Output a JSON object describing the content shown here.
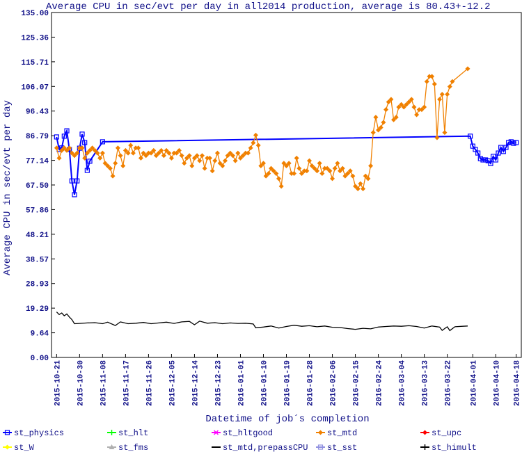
{
  "chart_data": {
    "type": "line",
    "title": "Average CPU in sec/evt per day in all2014 production, average is 80.43+-12.2",
    "xlabel": "Datetime of job´s completion",
    "ylabel": "Average CPU in sec/evt per day",
    "xlim": [
      "2015-10-19",
      "2016-04-20"
    ],
    "xticks": [
      "2015-10-21",
      "2015-10-30",
      "2015-11-08",
      "2015-11-17",
      "2015-11-26",
      "2015-12-05",
      "2015-12-14",
      "2015-12-23",
      "2016-01-01",
      "2016-01-10",
      "2016-01-19",
      "2016-01-28",
      "2016-02-06",
      "2016-02-15",
      "2016-02-24",
      "2016-03-04",
      "2016-03-13",
      "2016-03-22",
      "2016-04-01",
      "2016-04-10",
      "2016-04-18"
    ],
    "ylim": [
      0,
      135
    ],
    "yticks": [
      {
        "value": 0,
        "label": "0.00"
      },
      9.64,
      19.29,
      28.93,
      38.57,
      48.21,
      57.86,
      {
        "value": 67.5,
        "label": "67.50"
      },
      77.14,
      86.79,
      96.43,
      106.07,
      115.71,
      125.36,
      {
        "value": 135,
        "label": "135.00"
      }
    ],
    "grid": false,
    "series": [
      {
        "name": "st_physics",
        "color": "#0000ff",
        "marker": "square",
        "x": [
          "2015-10-21",
          "2015-10-22",
          "2015-10-23",
          "2015-10-24",
          "2015-10-25",
          "2015-10-26",
          "2015-10-27",
          "2015-10-28",
          "2015-10-29",
          "2015-10-30",
          "2015-10-31",
          "2015-11-01",
          "2015-11-02",
          "2015-11-03",
          "2015-11-08",
          "2016-03-31",
          "2016-04-01",
          "2016-04-02",
          "2016-04-03",
          "2016-04-04",
          "2016-04-05",
          "2016-04-06",
          "2016-04-07",
          "2016-04-08",
          "2016-04-09",
          "2016-04-10",
          "2016-04-11",
          "2016-04-12",
          "2016-04-13",
          "2016-04-14",
          "2016-04-15",
          "2016-04-16",
          "2016-04-17",
          "2016-04-18"
        ],
        "values": [
          86.3,
          81.4,
          82.0,
          86.6,
          88.7,
          81.4,
          69.1,
          63.7,
          69.1,
          81.9,
          87.4,
          84.1,
          73.2,
          76.8,
          84.4,
          86.6,
          82.7,
          81.4,
          80.0,
          77.8,
          77.3,
          77.3,
          77.0,
          75.9,
          78.7,
          77.3,
          80.0,
          82.2,
          80.6,
          82.2,
          84.1,
          84.4,
          83.8,
          84.1
        ]
      },
      {
        "name": "st_hlt",
        "color": "#00ff00",
        "marker": "plus",
        "x": [],
        "values": []
      },
      {
        "name": "st_hltgood",
        "color": "#ff00ff",
        "marker": "cross",
        "x": [],
        "values": []
      },
      {
        "name": "st_mtd",
        "color": "#f08000",
        "marker": "diamond",
        "x": [
          "2015-10-21",
          "2015-10-22",
          "2015-10-23",
          "2015-10-24",
          "2015-10-25",
          "2015-10-26",
          "2015-10-27",
          "2015-10-28",
          "2015-10-29",
          "2015-10-30",
          "2015-10-31",
          "2015-11-01",
          "2015-11-02",
          "2015-11-03",
          "2015-11-04",
          "2015-11-05",
          "2015-11-06",
          "2015-11-07",
          "2015-11-08",
          "2015-11-09",
          "2015-11-10",
          "2015-11-11",
          "2015-11-12",
          "2015-11-13",
          "2015-11-14",
          "2015-11-15",
          "2015-11-16",
          "2015-11-17",
          "2015-11-18",
          "2015-11-19",
          "2015-11-20",
          "2015-11-21",
          "2015-11-22",
          "2015-11-23",
          "2015-11-24",
          "2015-11-25",
          "2015-11-26",
          "2015-11-27",
          "2015-11-28",
          "2015-11-29",
          "2015-11-30",
          "2015-12-01",
          "2015-12-02",
          "2015-12-03",
          "2015-12-04",
          "2015-12-05",
          "2015-12-06",
          "2015-12-07",
          "2015-12-08",
          "2015-12-09",
          "2015-12-10",
          "2015-12-11",
          "2015-12-12",
          "2015-12-13",
          "2015-12-14",
          "2015-12-15",
          "2015-12-16",
          "2015-12-17",
          "2015-12-18",
          "2015-12-19",
          "2015-12-20",
          "2015-12-21",
          "2015-12-22",
          "2015-12-23",
          "2015-12-24",
          "2015-12-25",
          "2015-12-26",
          "2015-12-27",
          "2015-12-28",
          "2015-12-29",
          "2015-12-30",
          "2015-12-31",
          "2016-01-01",
          "2016-01-02",
          "2016-01-03",
          "2016-01-04",
          "2016-01-05",
          "2016-01-06",
          "2016-01-07",
          "2016-01-08",
          "2016-01-09",
          "2016-01-10",
          "2016-01-11",
          "2016-01-12",
          "2016-01-13",
          "2016-01-14",
          "2016-01-15",
          "2016-01-16",
          "2016-01-17",
          "2016-01-18",
          "2016-01-19",
          "2016-01-20",
          "2016-01-21",
          "2016-01-22",
          "2016-01-23",
          "2016-01-24",
          "2016-01-25",
          "2016-01-26",
          "2016-01-27",
          "2016-01-28",
          "2016-01-29",
          "2016-01-30",
          "2016-01-31",
          "2016-02-01",
          "2016-02-02",
          "2016-02-03",
          "2016-02-04",
          "2016-02-05",
          "2016-02-06",
          "2016-02-07",
          "2016-02-08",
          "2016-02-09",
          "2016-02-10",
          "2016-02-11",
          "2016-02-12",
          "2016-02-13",
          "2016-02-14",
          "2016-02-15",
          "2016-02-16",
          "2016-02-17",
          "2016-02-18",
          "2016-02-19",
          "2016-02-20",
          "2016-02-21",
          "2016-02-22",
          "2016-02-23",
          "2016-02-24",
          "2016-02-25",
          "2016-02-26",
          "2016-02-27",
          "2016-02-28",
          "2016-02-29",
          "2016-03-01",
          "2016-03-02",
          "2016-03-03",
          "2016-03-04",
          "2016-03-05",
          "2016-03-06",
          "2016-03-07",
          "2016-03-08",
          "2016-03-09",
          "2016-03-10",
          "2016-03-11",
          "2016-03-12",
          "2016-03-13",
          "2016-03-14",
          "2016-03-15",
          "2016-03-16",
          "2016-03-17",
          "2016-03-18",
          "2016-03-19",
          "2016-03-20",
          "2016-03-21",
          "2016-03-22",
          "2016-03-23",
          "2016-03-24",
          "2016-03-30"
        ],
        "values": [
          82,
          78,
          81,
          82,
          81,
          82,
          80,
          79,
          80,
          82,
          82,
          78,
          80,
          81,
          82,
          81,
          80,
          78,
          80,
          76,
          75,
          74,
          71,
          76,
          82,
          79,
          75,
          81,
          80,
          83,
          80,
          82,
          82,
          78,
          80,
          79,
          80,
          80,
          81,
          79,
          80,
          81,
          79,
          81,
          80,
          78,
          80,
          80,
          81,
          79,
          76,
          78,
          79,
          75,
          78,
          79,
          77,
          79,
          74,
          78,
          78,
          73,
          77,
          80,
          76,
          75,
          77,
          79,
          80,
          79,
          77,
          80,
          78,
          79,
          80,
          80,
          82,
          84,
          87,
          83,
          75,
          76,
          71,
          72,
          74,
          73,
          72,
          70,
          67,
          76,
          75,
          76,
          72,
          72,
          78,
          74,
          72,
          73,
          73,
          77,
          75,
          74,
          73,
          76,
          72,
          74,
          74,
          73,
          70,
          74,
          76,
          73,
          74,
          71,
          72,
          73,
          71,
          67,
          66,
          68,
          66,
          71,
          70,
          75,
          88,
          94,
          89,
          90,
          92,
          97,
          100,
          101,
          93,
          94,
          98,
          99,
          98,
          99,
          100,
          101,
          98,
          95,
          97,
          97,
          98,
          108,
          110,
          110,
          107,
          86,
          101,
          103,
          88,
          103,
          106,
          108,
          113
        ]
      },
      {
        "name": "st_upc",
        "color": "#ff0000",
        "marker": "diamond",
        "x": [],
        "values": []
      },
      {
        "name": "st_W",
        "color": "#ffff00",
        "marker": "diamond",
        "x": [],
        "values": []
      },
      {
        "name": "st_fms",
        "color": "#b0b0b0",
        "marker": "triangle",
        "x": [],
        "values": []
      },
      {
        "name": "st_mtd,prepassCPU",
        "color": "#000000",
        "marker": "none",
        "x": [
          "2015-10-21",
          "2015-10-22",
          "2015-10-23",
          "2015-10-24",
          "2015-10-25",
          "2015-10-26",
          "2015-10-27",
          "2015-10-28",
          "2015-10-30",
          "2015-11-02",
          "2015-11-05",
          "2015-11-08",
          "2015-11-10",
          "2015-11-13",
          "2015-11-15",
          "2015-11-18",
          "2015-11-21",
          "2015-11-24",
          "2015-11-27",
          "2015-11-30",
          "2015-12-03",
          "2015-12-06",
          "2015-12-09",
          "2015-12-12",
          "2015-12-14",
          "2015-12-16",
          "2015-12-19",
          "2015-12-22",
          "2015-12-25",
          "2015-12-28",
          "2015-12-31",
          "2016-01-03",
          "2016-01-06",
          "2016-01-07",
          "2016-01-10",
          "2016-01-13",
          "2016-01-16",
          "2016-01-19",
          "2016-01-22",
          "2016-01-25",
          "2016-01-28",
          "2016-01-31",
          "2016-02-03",
          "2016-02-06",
          "2016-02-09",
          "2016-02-12",
          "2016-02-15",
          "2016-02-18",
          "2016-02-21",
          "2016-02-24",
          "2016-02-27",
          "2016-03-01",
          "2016-03-04",
          "2016-03-07",
          "2016-03-10",
          "2016-03-13",
          "2016-03-16",
          "2016-03-19",
          "2016-03-20",
          "2016-03-22",
          "2016-03-23",
          "2016-03-25",
          "2016-03-28",
          "2016-03-30"
        ],
        "values": [
          17.8,
          16.8,
          17.4,
          16.3,
          17.0,
          15.8,
          14.8,
          13.2,
          13.3,
          13.5,
          13.6,
          13.2,
          13.8,
          12.5,
          13.9,
          13.2,
          13.4,
          13.7,
          13.2,
          13.5,
          13.8,
          13.3,
          13.9,
          14.1,
          12.8,
          14.2,
          13.4,
          13.6,
          13.2,
          13.5,
          13.3,
          13.4,
          13.1,
          11.6,
          11.9,
          12.3,
          11.5,
          12.1,
          12.6,
          12.2,
          12.4,
          12.0,
          12.3,
          11.8,
          11.7,
          11.3,
          11.0,
          11.4,
          11.2,
          11.9,
          12.1,
          12.3,
          12.2,
          12.4,
          12.1,
          11.5,
          12.3,
          11.9,
          10.6,
          12.0,
          10.5,
          12.0,
          12.2,
          12.3
        ]
      },
      {
        "name": "st_sst",
        "color": "#9090e0",
        "marker": "square",
        "x": [],
        "values": []
      },
      {
        "name": "st_himult",
        "color": "#000000",
        "marker": "plus",
        "x": [],
        "values": []
      }
    ]
  }
}
